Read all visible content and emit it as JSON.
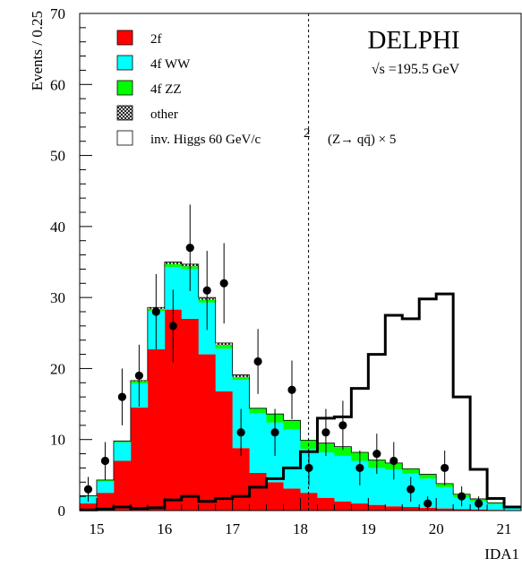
{
  "chart_data": {
    "type": "bar",
    "subtype": "stacked-histogram-with-data-points",
    "title": "DELPHI",
    "subtitle": "√s =195.5 GeV",
    "xlabel": "IDA1",
    "ylabel": "Events / 0.25",
    "xlim": [
      14.75,
      21.25
    ],
    "ylim": [
      0,
      70
    ],
    "x_ticks": [
      15,
      16,
      17,
      18,
      19,
      20,
      21
    ],
    "y_ticks": [
      0,
      10,
      20,
      30,
      40,
      50,
      60,
      70
    ],
    "grid": false,
    "legend_position": "top-left",
    "cut_line_x": 18.12,
    "bin_edges": [
      14.75,
      15.0,
      15.25,
      15.5,
      15.75,
      16.0,
      16.25,
      16.5,
      16.75,
      17.0,
      17.25,
      17.5,
      17.75,
      18.0,
      18.25,
      18.5,
      18.75,
      19.0,
      19.25,
      19.5,
      19.75,
      20.0,
      20.25,
      20.5,
      20.75,
      21.0,
      21.25
    ],
    "series": [
      {
        "name": "2f",
        "color": "#ff0000",
        "values": [
          1.0,
          2.5,
          7.0,
          14.5,
          22.7,
          28.3,
          27.0,
          22.0,
          16.8,
          8.8,
          5.3,
          4.0,
          3.1,
          2.5,
          1.8,
          1.3,
          1.0,
          0.8,
          0.6,
          0.5,
          0.4,
          0.3,
          0.2,
          0.15,
          0.1,
          0.05
        ]
      },
      {
        "name": "4f WW",
        "color": "#00ffff",
        "values": [
          1.0,
          1.6,
          2.6,
          3.4,
          5.4,
          6.0,
          7.0,
          7.3,
          6.0,
          9.6,
          8.4,
          8.4,
          8.3,
          6.2,
          6.4,
          6.4,
          6.0,
          5.2,
          5.2,
          4.7,
          4.1,
          3.0,
          1.7,
          1.2,
          0.8,
          0.4
        ]
      },
      {
        "name": "4f ZZ",
        "color": "#00ff00",
        "values": [
          0.1,
          0.2,
          0.2,
          0.3,
          0.3,
          0.4,
          0.4,
          0.4,
          0.5,
          0.4,
          0.7,
          1.2,
          1.3,
          1.2,
          1.3,
          1.3,
          1.2,
          1.1,
          0.9,
          0.7,
          0.6,
          0.5,
          0.4,
          0.3,
          0.2,
          0.1
        ]
      },
      {
        "name": "other",
        "color": "#000000",
        "values": [
          0,
          0,
          0,
          0.1,
          0.2,
          0.3,
          0.3,
          0.3,
          0.3,
          0.3,
          0,
          0,
          0,
          0,
          0,
          0,
          0,
          0,
          0,
          0,
          0,
          0,
          0,
          0,
          0,
          0
        ]
      }
    ],
    "signal": {
      "name": "inv. Higgs  60 GeV/c",
      "name_superscript": "2",
      "label": "(Z→ qq̄) × 5",
      "values": [
        0.1,
        0.2,
        0.5,
        0.3,
        0.4,
        1.5,
        2.0,
        1.3,
        1.7,
        2.0,
        3.3,
        4.5,
        6.0,
        8.3,
        13.0,
        13.2,
        17.2,
        22.0,
        27.5,
        27.0,
        29.8,
        30.5,
        16.0,
        5.8,
        1.7,
        0.5
      ]
    },
    "data_points": {
      "name": "data",
      "x": [
        14.875,
        15.125,
        15.375,
        15.625,
        15.875,
        16.125,
        16.375,
        16.625,
        16.875,
        17.125,
        17.375,
        17.625,
        17.875,
        18.125,
        18.375,
        18.625,
        18.875,
        19.125,
        19.375,
        19.625,
        19.875,
        20.125,
        20.375,
        20.625
      ],
      "y": [
        3,
        7,
        16,
        19,
        28,
        26,
        37,
        31,
        32,
        11,
        21,
        11,
        17,
        6,
        11,
        12,
        6,
        8,
        7,
        3,
        1,
        6,
        2,
        1
      ]
    }
  }
}
